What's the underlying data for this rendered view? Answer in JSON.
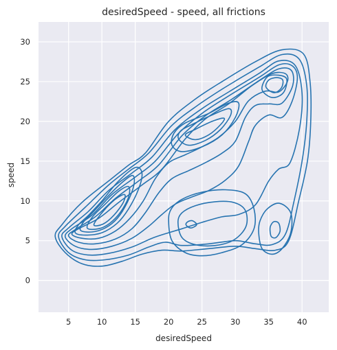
{
  "chart_data": {
    "type": "kde_contour",
    "title": "desiredSpeed - speed, all frictions",
    "xlabel": "desiredSpeed",
    "ylabel": "speed",
    "xlim": [
      0.5,
      44.0
    ],
    "ylim": [
      -4.0,
      32.5
    ],
    "xticks": [
      5,
      10,
      15,
      20,
      25,
      30,
      35,
      40
    ],
    "yticks": [
      0,
      5,
      10,
      15,
      20,
      25,
      30
    ],
    "grid": true,
    "background": "#eaeaf2",
    "line_color": "#2673b0",
    "contours": [
      {
        "level": 1,
        "points": [
          [
            3.0,
            5.5
          ],
          [
            4.5,
            3.5
          ],
          [
            7,
            2.1
          ],
          [
            10,
            1.8
          ],
          [
            13,
            2.4
          ],
          [
            16,
            3.3
          ],
          [
            19,
            3.8
          ],
          [
            22,
            3.7
          ],
          [
            26,
            4.0
          ],
          [
            30,
            4.3
          ],
          [
            33,
            4.0
          ],
          [
            36,
            3.8
          ],
          [
            38,
            5.0
          ],
          [
            39.5,
            10
          ],
          [
            40.8,
            15
          ],
          [
            41.3,
            20
          ],
          [
            41.2,
            25
          ],
          [
            40.2,
            28.5
          ],
          [
            37,
            29
          ],
          [
            33,
            27.5
          ],
          [
            28,
            25
          ],
          [
            24,
            22.8
          ],
          [
            20,
            20
          ],
          [
            16.5,
            16
          ],
          [
            14,
            14.5
          ],
          [
            11,
            12.5
          ],
          [
            7,
            9.8
          ],
          [
            4,
            7.0
          ]
        ]
      },
      {
        "level": 2,
        "points": [
          [
            3.5,
            5.5
          ],
          [
            5,
            3.5
          ],
          [
            7.5,
            2.6
          ],
          [
            10.5,
            2.6
          ],
          [
            14,
            3.2
          ],
          [
            17,
            4.2
          ],
          [
            19.5,
            4.8
          ],
          [
            22,
            4.4
          ],
          [
            26,
            4.6
          ],
          [
            30,
            5.0
          ],
          [
            33,
            4.6
          ],
          [
            35.5,
            4.5
          ],
          [
            37.5,
            5.8
          ],
          [
            38.8,
            10
          ],
          [
            40.0,
            15
          ],
          [
            40.7,
            20
          ],
          [
            40.7,
            24.5
          ],
          [
            39.6,
            27.8
          ],
          [
            37,
            28.4
          ],
          [
            33.5,
            26.8
          ],
          [
            28.5,
            24.3
          ],
          [
            24.5,
            22.1
          ],
          [
            20.5,
            19.5
          ],
          [
            17,
            16
          ],
          [
            14,
            14
          ],
          [
            11,
            12
          ],
          [
            7.5,
            9.2
          ],
          [
            4.5,
            6.8
          ]
        ]
      },
      {
        "level": 3,
        "points": [
          [
            4.0,
            5.5
          ],
          [
            5.5,
            3.8
          ],
          [
            8,
            3.2
          ],
          [
            11,
            3.4
          ],
          [
            14.5,
            4.2
          ],
          [
            17.5,
            5.3
          ],
          [
            20,
            6.0
          ],
          [
            22,
            6.5
          ],
          [
            25,
            7.3
          ],
          [
            28,
            8.0
          ],
          [
            30.5,
            8.3
          ],
          [
            33,
            9.5
          ],
          [
            35,
            12.5
          ],
          [
            36.5,
            14.0
          ],
          [
            38.2,
            14.8
          ],
          [
            39.6,
            19
          ],
          [
            40.0,
            23.5
          ],
          [
            39.0,
            27
          ],
          [
            36.5,
            27.6
          ],
          [
            33.5,
            26.0
          ],
          [
            29,
            23.7
          ],
          [
            25,
            21.6
          ],
          [
            21,
            19.0
          ],
          [
            17.5,
            15.5
          ],
          [
            14.5,
            13.5
          ],
          [
            11,
            11.3
          ],
          [
            8,
            8.7
          ],
          [
            5,
            6.6
          ]
        ]
      },
      {
        "level": 4,
        "points": [
          [
            4.5,
            5.5
          ],
          [
            6,
            4.3
          ],
          [
            8.5,
            3.9
          ],
          [
            11.5,
            4.3
          ],
          [
            14.5,
            5.3
          ],
          [
            17,
            6.8
          ],
          [
            19,
            8.3
          ],
          [
            21,
            9.6
          ],
          [
            23.5,
            10.5
          ],
          [
            26,
            11.3
          ],
          [
            28.5,
            12.6
          ],
          [
            30.5,
            14.4
          ],
          [
            32,
            17.5
          ],
          [
            33,
            19.5
          ],
          [
            35,
            20.8
          ],
          [
            37,
            20.5
          ],
          [
            38.5,
            22.5
          ],
          [
            39.3,
            25.5
          ],
          [
            38.5,
            27.0
          ],
          [
            36.5,
            27.1
          ],
          [
            33.5,
            25.5
          ],
          [
            29,
            23.2
          ],
          [
            25,
            21.0
          ],
          [
            21.5,
            18.5
          ],
          [
            18,
            15.0
          ],
          [
            15,
            13.0
          ],
          [
            11.5,
            10.8
          ],
          [
            8.5,
            8.2
          ],
          [
            5.5,
            6.5
          ]
        ]
      },
      {
        "level": 5,
        "points": [
          [
            5.0,
            5.6
          ],
          [
            6.5,
            4.8
          ],
          [
            9,
            4.6
          ],
          [
            12,
            5.2
          ],
          [
            14.5,
            6.5
          ],
          [
            16.5,
            8.5
          ],
          [
            18.5,
            11.0
          ],
          [
            20.5,
            12.8
          ],
          [
            23,
            13.8
          ],
          [
            25.5,
            14.8
          ],
          [
            28,
            16.0
          ],
          [
            30,
            17.5
          ],
          [
            31.5,
            20.5
          ],
          [
            33,
            22.0
          ],
          [
            35,
            22.2
          ],
          [
            37,
            22.3
          ],
          [
            38.6,
            24.5
          ],
          [
            38.4,
            26.4
          ],
          [
            36.5,
            26.6
          ],
          [
            33.5,
            25.1
          ],
          [
            29.5,
            22.8
          ],
          [
            25.5,
            20.7
          ],
          [
            22,
            18.2
          ],
          [
            18.5,
            14.5
          ],
          [
            15.5,
            12.5
          ],
          [
            12,
            10.3
          ],
          [
            9,
            8.0
          ],
          [
            6,
            6.4
          ]
        ]
      },
      {
        "level": 6,
        "points": [
          [
            5.5,
            5.8
          ],
          [
            7,
            5.3
          ],
          [
            9.5,
            5.3
          ],
          [
            12,
            6.2
          ],
          [
            14.2,
            7.8
          ],
          [
            16.2,
            10.0
          ],
          [
            18,
            12.8
          ],
          [
            20,
            14.8
          ],
          [
            22.5,
            15.8
          ],
          [
            25,
            16.8
          ],
          [
            27.5,
            18.0
          ],
          [
            30,
            20.0
          ],
          [
            32,
            22.6
          ],
          [
            34.5,
            23.8
          ],
          [
            36.5,
            23.7
          ],
          [
            37.8,
            25.0
          ],
          [
            37.5,
            26.0
          ],
          [
            35.5,
            26.0
          ],
          [
            32.5,
            24.5
          ],
          [
            29,
            22.2
          ],
          [
            25.5,
            20.3
          ],
          [
            22.5,
            17.8
          ],
          [
            19,
            14.0
          ],
          [
            16,
            12.0
          ],
          [
            12.5,
            9.8
          ],
          [
            9.5,
            7.8
          ],
          [
            6.5,
            6.5
          ]
        ]
      },
      {
        "level": 7,
        "points": [
          [
            6.0,
            6.0
          ],
          [
            7.5,
            5.7
          ],
          [
            10,
            6.0
          ],
          [
            12.3,
            7.2
          ],
          [
            14,
            9.0
          ],
          [
            15.5,
            11.5
          ],
          [
            16,
            13.5
          ],
          [
            15,
            14.2
          ],
          [
            12.5,
            12.5
          ],
          [
            10,
            10.0
          ],
          [
            8,
            8.2
          ],
          [
            6.5,
            7.0
          ]
        ]
      },
      {
        "level": 7,
        "points": [
          [
            20.5,
            17.0
          ],
          [
            22,
            16.2
          ],
          [
            25,
            16.8
          ],
          [
            28,
            18.3
          ],
          [
            30,
            20.5
          ],
          [
            30.5,
            22.3
          ],
          [
            29,
            22.3
          ],
          [
            26,
            21.0
          ],
          [
            22.5,
            19.8
          ],
          [
            20.8,
            18.5
          ]
        ]
      },
      {
        "level": 7,
        "points": [
          [
            34.0,
            24.0
          ],
          [
            35.5,
            23.0
          ],
          [
            37.2,
            23.6
          ],
          [
            37.7,
            25.3
          ],
          [
            36.5,
            25.8
          ],
          [
            34.8,
            25.6
          ]
        ]
      },
      {
        "level": 8,
        "points": [
          [
            6.8,
            6.3
          ],
          [
            8.5,
            6.1
          ],
          [
            10.5,
            6.6
          ],
          [
            12.3,
            7.8
          ],
          [
            13.8,
            9.8
          ],
          [
            14.8,
            12.0
          ],
          [
            14.6,
            13.2
          ],
          [
            13,
            12.3
          ],
          [
            10.8,
            10.5
          ],
          [
            8.8,
            8.7
          ],
          [
            7.2,
            7.3
          ]
        ]
      },
      {
        "level": 8,
        "points": [
          [
            21.5,
            17.8
          ],
          [
            23,
            17.0
          ],
          [
            25.5,
            17.6
          ],
          [
            27.8,
            19.0
          ],
          [
            29.3,
            20.8
          ],
          [
            29,
            21.6
          ],
          [
            26.5,
            20.8
          ],
          [
            23.5,
            19.6
          ],
          [
            21.8,
            18.8
          ]
        ]
      },
      {
        "level": 8,
        "points": [
          [
            34.6,
            24.3
          ],
          [
            35.8,
            23.6
          ],
          [
            36.9,
            24.2
          ],
          [
            37.1,
            25.2
          ],
          [
            36.2,
            25.5
          ],
          [
            35,
            25.2
          ]
        ]
      },
      {
        "level": 9,
        "points": [
          [
            7.8,
            6.6
          ],
          [
            9.5,
            6.5
          ],
          [
            11.2,
            7.2
          ],
          [
            12.8,
            8.6
          ],
          [
            14.0,
            10.5
          ],
          [
            14.0,
            11.8
          ],
          [
            12.5,
            11.2
          ],
          [
            10.5,
            9.6
          ],
          [
            8.6,
            8.0
          ]
        ]
      },
      {
        "level": 9,
        "points": [
          [
            22.5,
            18.3
          ],
          [
            24,
            17.7
          ],
          [
            26,
            18.3
          ],
          [
            27.8,
            19.6
          ],
          [
            28.3,
            20.4
          ],
          [
            26.5,
            20.0
          ],
          [
            24,
            19.0
          ]
        ]
      },
      {
        "level": 10,
        "points": [
          [
            8.8,
            7.0
          ],
          [
            10.2,
            7.1
          ],
          [
            11.8,
            8.2
          ],
          [
            13.2,
            9.8
          ],
          [
            13.4,
            10.8
          ],
          [
            12,
            10.2
          ],
          [
            10.2,
            8.7
          ]
        ]
      },
      {
        "level": 4,
        "points": [
          [
            20,
            7.5
          ],
          [
            20.5,
            5.0
          ],
          [
            22.5,
            3.5
          ],
          [
            25,
            3.1
          ],
          [
            28,
            3.5
          ],
          [
            31,
            4.5
          ],
          [
            32.8,
            6.5
          ],
          [
            32.8,
            9.0
          ],
          [
            31.5,
            10.9
          ],
          [
            28.5,
            11.4
          ],
          [
            25,
            11.1
          ],
          [
            22,
            10.2
          ],
          [
            20.4,
            9.0
          ]
        ]
      },
      {
        "level": 5,
        "points": [
          [
            21.4,
            7.3
          ],
          [
            22,
            5.4
          ],
          [
            24,
            4.5
          ],
          [
            27,
            4.4
          ],
          [
            29.8,
            5.1
          ],
          [
            31.6,
            6.8
          ],
          [
            31.5,
            8.8
          ],
          [
            29.8,
            9.8
          ],
          [
            27,
            9.9
          ],
          [
            24,
            9.4
          ],
          [
            22,
            8.5
          ]
        ]
      },
      {
        "level": 7,
        "points": [
          [
            22.6,
            7.0
          ],
          [
            23.3,
            6.6
          ],
          [
            24.2,
            7.0
          ],
          [
            23.6,
            7.5
          ],
          [
            22.9,
            7.4
          ]
        ]
      },
      {
        "level": 4,
        "points": [
          [
            33.5,
            6.0
          ],
          [
            34,
            4.0
          ],
          [
            35.5,
            3.3
          ],
          [
            37.0,
            4.0
          ],
          [
            38.3,
            6.0
          ],
          [
            38.3,
            8.5
          ],
          [
            36.6,
            9.7
          ],
          [
            34.8,
            9.0
          ],
          [
            33.7,
            7.5
          ]
        ]
      },
      {
        "level": 6,
        "points": [
          [
            35.2,
            6.3
          ],
          [
            35.4,
            5.5
          ],
          [
            36.1,
            5.4
          ],
          [
            36.7,
            6.2
          ],
          [
            36.5,
            7.2
          ],
          [
            35.8,
            7.4
          ],
          [
            35.3,
            6.9
          ]
        ]
      }
    ]
  }
}
